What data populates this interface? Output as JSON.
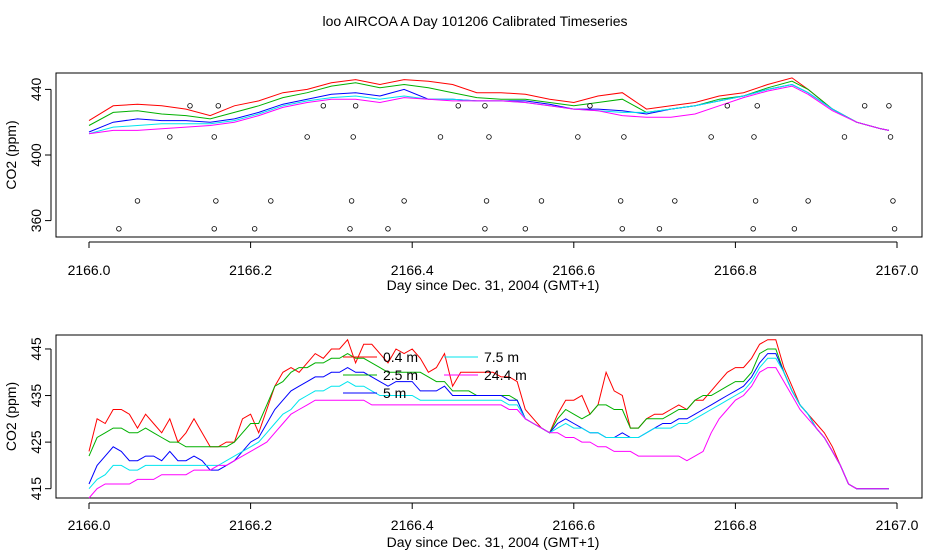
{
  "title": "loo AIRCOA A  Day 101206  Calibrated Timeseries",
  "colors": {
    "0.4 m": "#ff0000",
    "2.5 m": "#00b000",
    "5 m": "#0000ff",
    "7.5 m": "#00e5ee",
    "24.4 m": "#ff00ff",
    "axis": "#000000"
  },
  "chart_data": [
    {
      "type": "line",
      "panel": "top",
      "xlabel": "Day since Dec. 31, 2004 (GMT+1)",
      "ylabel": "CO2 (ppm)",
      "xlim": [
        2166.0,
        2167.0
      ],
      "ylim": [
        350,
        450
      ],
      "xticks": [
        2166.0,
        2166.2,
        2166.4,
        2166.6,
        2166.8,
        2167.0
      ],
      "xtick_labels": [
        "2166.0",
        "2166.2",
        "2166.4",
        "2166.6",
        "2166.8",
        "2167.0"
      ],
      "yticks": [
        360,
        400,
        440
      ],
      "ytick_labels": [
        "360",
        "400",
        "440"
      ],
      "grid": false,
      "x": [
        2166.0,
        2166.03,
        2166.06,
        2166.09,
        2166.12,
        2166.15,
        2166.18,
        2166.21,
        2166.24,
        2166.27,
        2166.3,
        2166.33,
        2166.36,
        2166.39,
        2166.42,
        2166.45,
        2166.48,
        2166.51,
        2166.54,
        2166.57,
        2166.6,
        2166.63,
        2166.66,
        2166.69,
        2166.72,
        2166.75,
        2166.78,
        2166.81,
        2166.84,
        2166.87,
        2166.89,
        2166.92,
        2166.95,
        2166.98,
        2166.99
      ],
      "series": [
        {
          "name": "0.4 m",
          "values": [
            421,
            430,
            431,
            430,
            428,
            424,
            430,
            433,
            438,
            440,
            444,
            446,
            443,
            446,
            445,
            443,
            438,
            438,
            437,
            434,
            432,
            436,
            438,
            428,
            430,
            432,
            436,
            438,
            443,
            447,
            440,
            428,
            420,
            416,
            415
          ]
        },
        {
          "name": "2.5 m",
          "values": [
            418,
            426,
            427,
            425,
            424,
            422,
            426,
            430,
            435,
            438,
            442,
            444,
            441,
            443,
            441,
            438,
            435,
            434,
            434,
            432,
            430,
            432,
            434,
            426,
            428,
            430,
            434,
            436,
            441,
            445,
            440,
            428,
            420,
            416,
            415
          ]
        },
        {
          "name": "5 m",
          "values": [
            414,
            420,
            422,
            421,
            421,
            420,
            422,
            426,
            431,
            434,
            437,
            438,
            436,
            440,
            434,
            434,
            433,
            433,
            433,
            431,
            428,
            428,
            427,
            425,
            428,
            430,
            433,
            436,
            440,
            443,
            438,
            428,
            420,
            416,
            415
          ]
        },
        {
          "name": "7.5 m",
          "values": [
            413,
            417,
            418,
            419,
            419,
            419,
            421,
            425,
            430,
            433,
            435,
            436,
            434,
            436,
            434,
            434,
            433,
            433,
            432,
            430,
            428,
            427,
            426,
            426,
            428,
            430,
            433,
            436,
            440,
            443,
            438,
            428,
            420,
            416,
            415
          ]
        },
        {
          "name": "24.4 m",
          "values": [
            413,
            415,
            415,
            416,
            417,
            418,
            420,
            424,
            429,
            432,
            434,
            434,
            432,
            435,
            434,
            433,
            433,
            433,
            432,
            430,
            428,
            427,
            424,
            423,
            423,
            425,
            430,
            435,
            439,
            442,
            437,
            427,
            420,
            416,
            415
          ]
        }
      ],
      "points": {
        "x": [
          2166.037,
          2166.06,
          2166.1,
          2166.125,
          2166.155,
          2166.157,
          2166.155,
          2166.16,
          2166.205,
          2166.225,
          2166.27,
          2166.29,
          2166.323,
          2166.325,
          2166.327,
          2166.33,
          2166.37,
          2166.39,
          2166.435,
          2166.457,
          2166.49,
          2166.492,
          2166.495,
          2166.49,
          2166.54,
          2166.56,
          2166.605,
          2166.62,
          2166.66,
          2166.658,
          2166.662,
          2166.706,
          2166.725,
          2166.77,
          2166.79,
          2166.822,
          2166.825,
          2166.823,
          2166.827,
          2166.873,
          2166.89,
          2166.935,
          2166.96,
          2166.99,
          2166.992,
          2166.995,
          2166.997
        ],
        "y": [
          355,
          372,
          411,
          430,
          355,
          372,
          411,
          430,
          355,
          372,
          411,
          430,
          355,
          372,
          411,
          430,
          355,
          372,
          411,
          430,
          355,
          372,
          411,
          430,
          355,
          372,
          411,
          430,
          355,
          372,
          411,
          355,
          372,
          411,
          430,
          355,
          372,
          411,
          430,
          355,
          372,
          411,
          430,
          430,
          411,
          372,
          355
        ]
      }
    },
    {
      "type": "line",
      "panel": "bottom",
      "xlabel": "Day since Dec. 31, 2004 (GMT+1)",
      "ylabel": "CO2 (ppm)",
      "xlim": [
        2166.0,
        2167.0
      ],
      "ylim": [
        413,
        448
      ],
      "xticks": [
        2166.0,
        2166.2,
        2166.4,
        2166.6,
        2166.8,
        2167.0
      ],
      "xtick_labels": [
        "2166.0",
        "2166.2",
        "2166.4",
        "2166.6",
        "2166.8",
        "2167.0"
      ],
      "yticks": [
        415,
        425,
        435,
        445
      ],
      "ytick_labels": [
        "415",
        "425",
        "435",
        "445"
      ],
      "grid": false,
      "legend": {
        "position": "top-center",
        "labels": [
          "0.4 m",
          "2.5 m",
          "5 m",
          "7.5 m",
          "24.4 m"
        ]
      },
      "x": [
        2166.0,
        2166.01,
        2166.02,
        2166.03,
        2166.04,
        2166.05,
        2166.06,
        2166.07,
        2166.08,
        2166.09,
        2166.1,
        2166.11,
        2166.12,
        2166.13,
        2166.14,
        2166.15,
        2166.16,
        2166.17,
        2166.18,
        2166.19,
        2166.2,
        2166.21,
        2166.22,
        2166.23,
        2166.24,
        2166.25,
        2166.26,
        2166.27,
        2166.28,
        2166.29,
        2166.3,
        2166.31,
        2166.32,
        2166.33,
        2166.34,
        2166.35,
        2166.36,
        2166.37,
        2166.38,
        2166.39,
        2166.4,
        2166.41,
        2166.42,
        2166.43,
        2166.44,
        2166.45,
        2166.46,
        2166.47,
        2166.48,
        2166.49,
        2166.5,
        2166.51,
        2166.52,
        2166.53,
        2166.54,
        2166.55,
        2166.56,
        2166.57,
        2166.58,
        2166.59,
        2166.6,
        2166.61,
        2166.62,
        2166.63,
        2166.64,
        2166.65,
        2166.66,
        2166.67,
        2166.68,
        2166.69,
        2166.7,
        2166.71,
        2166.72,
        2166.73,
        2166.74,
        2166.75,
        2166.76,
        2166.77,
        2166.78,
        2166.79,
        2166.8,
        2166.81,
        2166.82,
        2166.83,
        2166.84,
        2166.85,
        2166.86,
        2166.87,
        2166.88,
        2166.89,
        2166.9,
        2166.91,
        2166.92,
        2166.93,
        2166.94,
        2166.95,
        2166.96,
        2166.97,
        2166.98,
        2166.99
      ],
      "series": [
        {
          "name": "0.4 m",
          "values": [
            423,
            430,
            429,
            432,
            432,
            431,
            428,
            431,
            429,
            427,
            430,
            425,
            427,
            430,
            427,
            424,
            424,
            425,
            425,
            430,
            431,
            427,
            432,
            437,
            440,
            441,
            440,
            442,
            444,
            443,
            445,
            445,
            447,
            442,
            446,
            446,
            444,
            442,
            445,
            444,
            445,
            443,
            440,
            441,
            444,
            437,
            440,
            440,
            440,
            440,
            440,
            439,
            439,
            438,
            432,
            430,
            428,
            427,
            431,
            434,
            434,
            435,
            431,
            433,
            440,
            436,
            435,
            428,
            428,
            430,
            431,
            431,
            432,
            433,
            432,
            434,
            434,
            436,
            438,
            440,
            441,
            441,
            443,
            446,
            447,
            447,
            441,
            437,
            433,
            431,
            429,
            427,
            424,
            420,
            416,
            415,
            415,
            415,
            415,
            415
          ]
        },
        {
          "name": "2.5 m",
          "values": [
            422,
            426,
            427,
            428,
            428,
            427,
            427,
            428,
            427,
            426,
            425,
            425,
            424,
            424,
            424,
            424,
            424,
            424,
            425,
            427,
            429,
            429,
            433,
            437,
            438,
            440,
            441,
            441,
            442,
            442,
            443,
            443,
            444,
            443,
            443,
            442,
            441,
            440,
            440,
            440,
            440,
            440,
            439,
            438,
            438,
            436,
            436,
            436,
            435,
            435,
            435,
            435,
            435,
            434,
            430,
            429,
            428,
            427,
            430,
            432,
            431,
            430,
            431,
            433,
            433,
            432,
            432,
            428,
            428,
            430,
            430,
            430,
            431,
            432,
            432,
            434,
            435,
            435,
            436,
            437,
            438,
            438,
            440,
            444,
            445,
            445,
            440,
            436,
            433,
            431,
            428,
            426,
            423,
            420,
            416,
            415,
            415,
            415,
            415,
            415
          ]
        },
        {
          "name": "5 m",
          "values": [
            416,
            420,
            422,
            424,
            423,
            421,
            421,
            422,
            422,
            421,
            423,
            421,
            421,
            422,
            421,
            419,
            419,
            420,
            421,
            423,
            425,
            426,
            429,
            432,
            434,
            436,
            437,
            438,
            439,
            439,
            440,
            440,
            441,
            440,
            440,
            439,
            438,
            437,
            438,
            438,
            438,
            436,
            436,
            436,
            437,
            435,
            435,
            435,
            435,
            435,
            435,
            435,
            434,
            434,
            430,
            429,
            428,
            427,
            429,
            430,
            429,
            428,
            427,
            427,
            426,
            426,
            427,
            426,
            426,
            427,
            428,
            429,
            429,
            430,
            430,
            431,
            432,
            433,
            434,
            435,
            436,
            437,
            439,
            442,
            444,
            444,
            440,
            436,
            433,
            431,
            428,
            426,
            423,
            420,
            416,
            415,
            415,
            415,
            415,
            415
          ]
        },
        {
          "name": "7.5 m",
          "values": [
            415,
            417,
            418,
            420,
            420,
            419,
            419,
            420,
            420,
            420,
            420,
            420,
            420,
            420,
            420,
            420,
            420,
            421,
            422,
            423,
            424,
            425,
            427,
            429,
            431,
            432,
            434,
            435,
            436,
            436,
            437,
            437,
            438,
            437,
            437,
            436,
            435,
            435,
            435,
            435,
            435,
            434,
            434,
            434,
            434,
            434,
            434,
            434,
            434,
            434,
            434,
            434,
            433,
            433,
            430,
            429,
            428,
            427,
            428,
            429,
            428,
            428,
            427,
            427,
            426,
            426,
            426,
            426,
            426,
            427,
            428,
            428,
            428,
            429,
            429,
            430,
            431,
            432,
            433,
            434,
            435,
            436,
            438,
            441,
            443,
            443,
            440,
            436,
            433,
            431,
            428,
            426,
            423,
            420,
            416,
            415,
            415,
            415,
            415,
            415
          ]
        },
        {
          "name": "24.4 m",
          "values": [
            413,
            415,
            416,
            416,
            416,
            416,
            417,
            417,
            417,
            418,
            418,
            418,
            418,
            419,
            419,
            419,
            420,
            420,
            421,
            422,
            423,
            424,
            425,
            427,
            429,
            431,
            432,
            433,
            434,
            434,
            434,
            434,
            434,
            434,
            434,
            433,
            433,
            433,
            433,
            433,
            433,
            433,
            433,
            433,
            433,
            433,
            433,
            433,
            433,
            433,
            433,
            433,
            432,
            432,
            430,
            429,
            428,
            427,
            427,
            426,
            426,
            425,
            425,
            424,
            424,
            423,
            423,
            423,
            422,
            422,
            422,
            422,
            422,
            422,
            421,
            422,
            423,
            427,
            430,
            432,
            434,
            435,
            437,
            440,
            441,
            441,
            438,
            435,
            432,
            430,
            428,
            426,
            423,
            420,
            416,
            415,
            415,
            415,
            415,
            415
          ]
        }
      ]
    }
  ]
}
